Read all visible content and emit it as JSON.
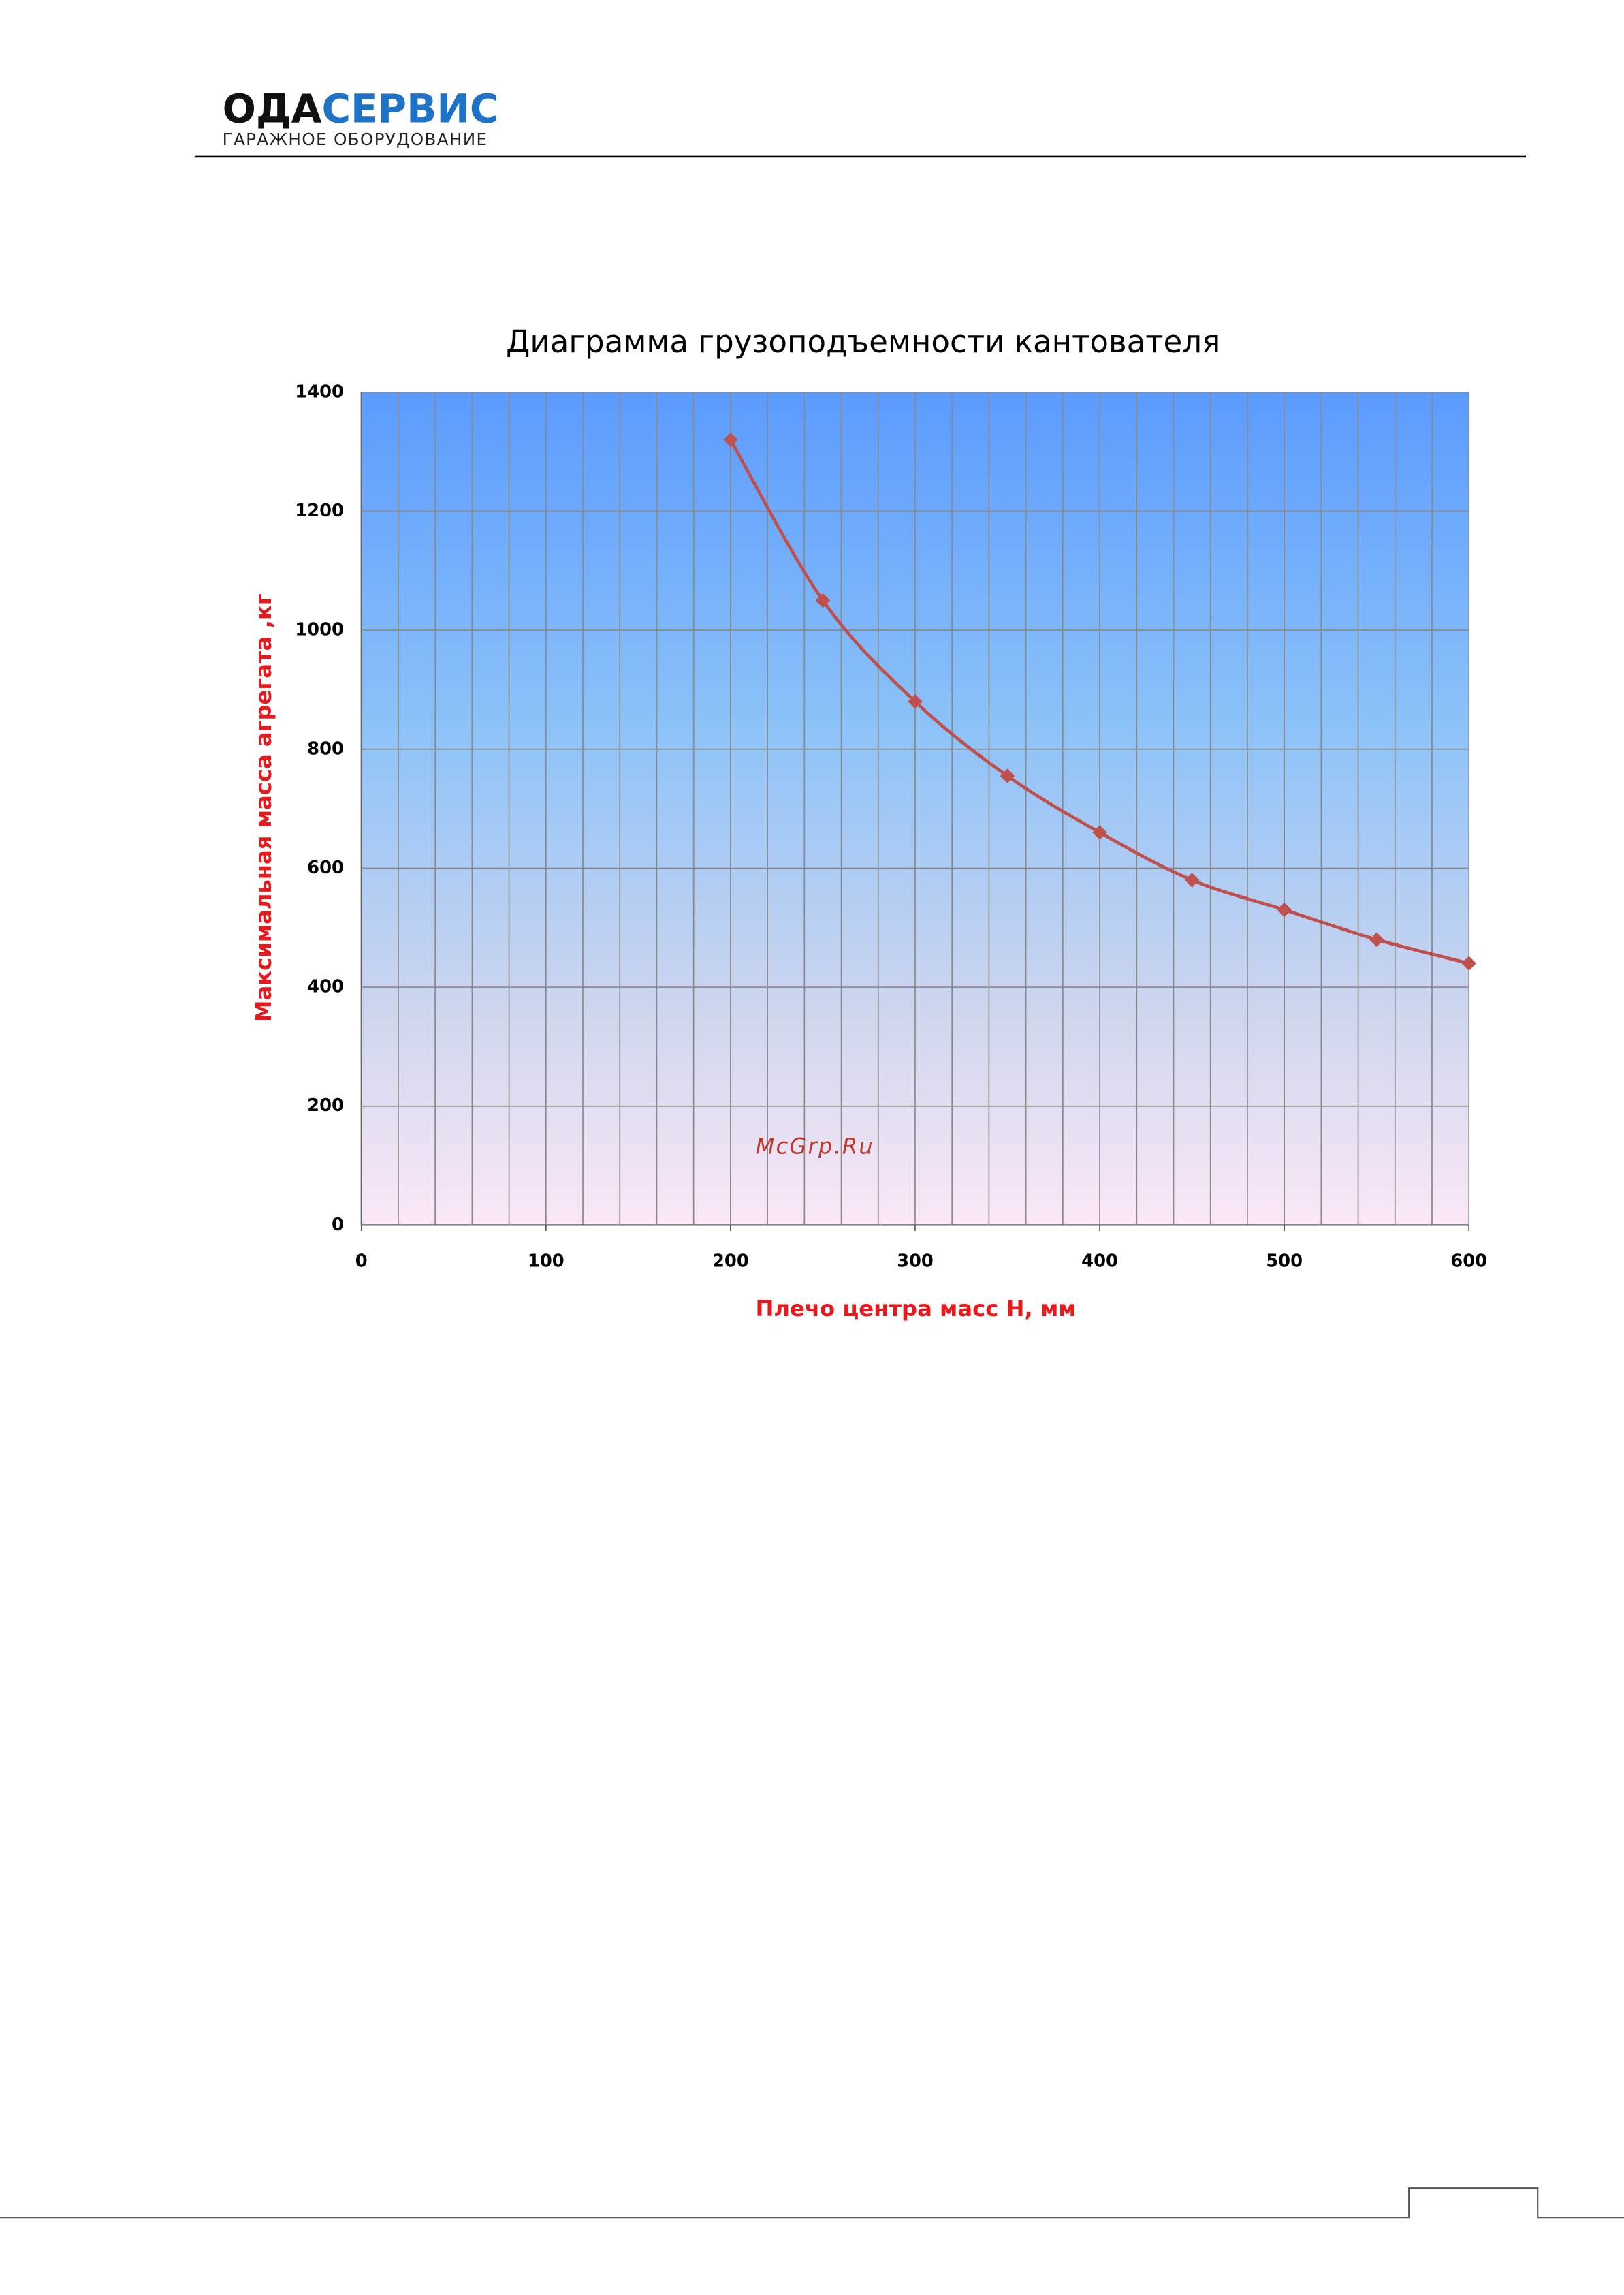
{
  "header": {
    "logo_dark": "ОДА",
    "logo_blue": "СЕРВИС",
    "subtitle": "ГАРАЖНОЕ ОБОРУДОВАНИЕ"
  },
  "chart_data": {
    "type": "line",
    "title": "Диаграмма грузоподъемности кантователя",
    "x_label": "Плечо  центра масс H, мм",
    "y_label": "Максимальная  масса агрегата ,кг",
    "x": [
      200,
      250,
      300,
      350,
      400,
      450,
      500,
      550,
      600
    ],
    "values": [
      1320,
      1050,
      880,
      755,
      660,
      580,
      530,
      480,
      440
    ],
    "color": "#c0504d",
    "xlim": [
      0,
      600
    ],
    "ylim": [
      0,
      1400
    ],
    "xticks": [
      0,
      100,
      200,
      300,
      400,
      500,
      600
    ],
    "xminorticks": [
      0,
      20,
      40,
      60,
      80,
      100,
      120,
      140,
      160,
      180,
      200,
      220,
      240,
      260,
      280,
      300,
      320,
      340,
      360,
      380,
      400,
      420,
      440,
      460,
      480,
      500,
      520,
      540,
      560,
      580,
      600
    ],
    "yticks": [
      0,
      200,
      400,
      600,
      800,
      1000,
      1200,
      1400
    ],
    "grid": true,
    "watermark": "McGrp.Ru"
  }
}
